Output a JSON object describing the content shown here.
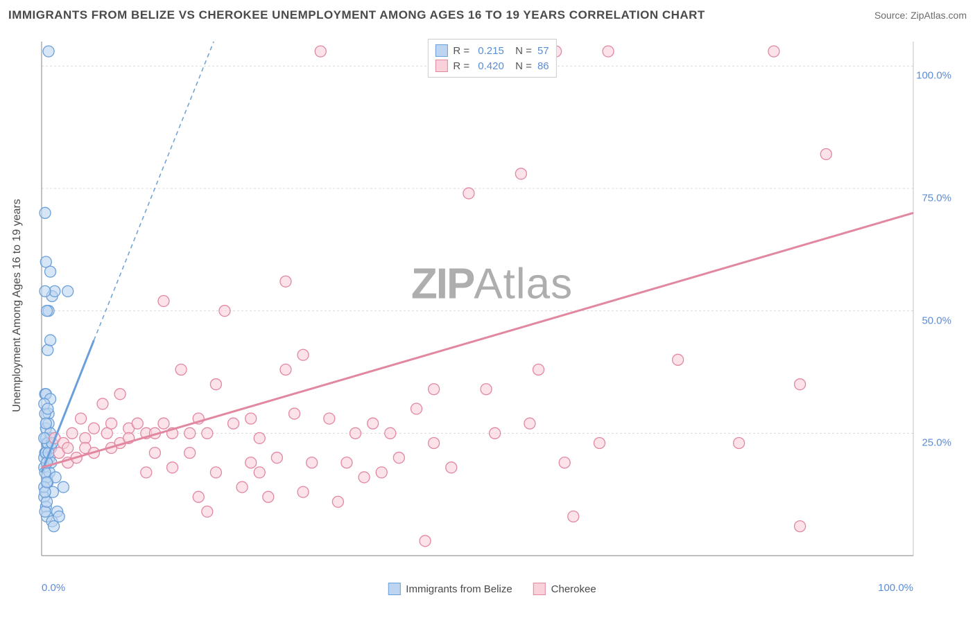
{
  "title": "IMMIGRANTS FROM BELIZE VS CHEROKEE UNEMPLOYMENT AMONG AGES 16 TO 19 YEARS CORRELATION CHART",
  "source": "Source: ZipAtlas.com",
  "y_axis_label": "Unemployment Among Ages 16 to 19 years",
  "watermark_strong": "ZIP",
  "watermark_light": "Atlas",
  "chart": {
    "type": "scatter",
    "xlim": [
      0,
      100
    ],
    "ylim": [
      0,
      105
    ],
    "x_ticks": [
      {
        "value": 0,
        "label": "0.0%"
      },
      {
        "value": 100,
        "label": "100.0%"
      }
    ],
    "y_ticks": [
      {
        "value": 25,
        "label": "25.0%"
      },
      {
        "value": 50,
        "label": "50.0%"
      },
      {
        "value": 75,
        "label": "75.0%"
      },
      {
        "value": 100,
        "label": "100.0%"
      }
    ],
    "grid_color": "#d9d9d9",
    "axis_color": "#9a9a9a",
    "background_color": "#ffffff",
    "marker_radius": 8,
    "marker_stroke_width": 1.3,
    "trend_line_width": 3,
    "dashed_line_width": 1.5,
    "series": [
      {
        "name": "Immigrants from Belize",
        "fill_color": "#bdd5f0",
        "stroke_color": "#6a9fd9",
        "fill_opacity": 0.6,
        "R": "0.215",
        "N": "57",
        "trend_start": {
          "x": 0,
          "y": 17
        },
        "trend_end": {
          "x": 6,
          "y": 44
        },
        "dashed_end": {
          "x": 22,
          "y": 115
        },
        "points": [
          [
            0.3,
            18
          ],
          [
            0.4,
            21
          ],
          [
            0.6,
            23
          ],
          [
            0.5,
            26
          ],
          [
            0.8,
            29
          ],
          [
            0.4,
            33
          ],
          [
            0.7,
            15
          ],
          [
            0.9,
            20
          ],
          [
            1.0,
            24
          ],
          [
            1.1,
            22
          ],
          [
            0.3,
            12
          ],
          [
            0.5,
            10
          ],
          [
            0.6,
            8
          ],
          [
            1.2,
            7
          ],
          [
            1.4,
            6
          ],
          [
            1.8,
            9
          ],
          [
            2.0,
            8
          ],
          [
            2.5,
            14
          ],
          [
            0.5,
            33
          ],
          [
            0.7,
            42
          ],
          [
            1.0,
            44
          ],
          [
            1.2,
            53
          ],
          [
            1.5,
            54
          ],
          [
            0.8,
            50
          ],
          [
            0.6,
            50
          ],
          [
            0.4,
            54
          ],
          [
            0.5,
            60
          ],
          [
            1.0,
            58
          ],
          [
            0.4,
            70
          ],
          [
            3.0,
            54
          ],
          [
            1.0,
            32
          ],
          [
            0.3,
            20
          ],
          [
            0.5,
            24
          ],
          [
            0.8,
            27
          ],
          [
            0.4,
            29
          ],
          [
            0.6,
            16
          ],
          [
            0.3,
            14
          ],
          [
            0.9,
            17
          ],
          [
            1.1,
            19
          ],
          [
            0.4,
            9
          ],
          [
            0.6,
            11
          ],
          [
            1.3,
            13
          ],
          [
            1.6,
            16
          ],
          [
            0.3,
            31
          ],
          [
            0.5,
            21
          ],
          [
            0.7,
            23
          ],
          [
            1.0,
            25
          ],
          [
            0.4,
            17
          ],
          [
            0.6,
            19
          ],
          [
            0.8,
            21
          ],
          [
            1.2,
            23
          ],
          [
            0.3,
            24
          ],
          [
            0.5,
            27
          ],
          [
            0.7,
            30
          ],
          [
            0.4,
            13
          ],
          [
            0.6,
            15
          ],
          [
            0.8,
            103
          ]
        ]
      },
      {
        "name": "Cherokee",
        "fill_color": "#f8d1da",
        "stroke_color": "#e287a0",
        "fill_opacity": 0.6,
        "R": "0.420",
        "N": "86",
        "trend_start": {
          "x": 0,
          "y": 18
        },
        "trend_end": {
          "x": 100,
          "y": 70
        },
        "points": [
          [
            1.5,
            24
          ],
          [
            2,
            21
          ],
          [
            2.5,
            23
          ],
          [
            3,
            19
          ],
          [
            3,
            22
          ],
          [
            3.5,
            25
          ],
          [
            4,
            20
          ],
          [
            4.5,
            28
          ],
          [
            5,
            24
          ],
          [
            5,
            22
          ],
          [
            6,
            26
          ],
          [
            6,
            21
          ],
          [
            7,
            31
          ],
          [
            7.5,
            25
          ],
          [
            8,
            22
          ],
          [
            8,
            27
          ],
          [
            9,
            23
          ],
          [
            9,
            33
          ],
          [
            10,
            26
          ],
          [
            10,
            24
          ],
          [
            11,
            27
          ],
          [
            12,
            25
          ],
          [
            12,
            17
          ],
          [
            13,
            21
          ],
          [
            13,
            25
          ],
          [
            14,
            27
          ],
          [
            14,
            52
          ],
          [
            15,
            25
          ],
          [
            15,
            18
          ],
          [
            16,
            38
          ],
          [
            17,
            21
          ],
          [
            17,
            25
          ],
          [
            18,
            12
          ],
          [
            18,
            28
          ],
          [
            19,
            9
          ],
          [
            19,
            25
          ],
          [
            20,
            17
          ],
          [
            20,
            35
          ],
          [
            21,
            50
          ],
          [
            22,
            27
          ],
          [
            23,
            14
          ],
          [
            24,
            19
          ],
          [
            24,
            28
          ],
          [
            25,
            24
          ],
          [
            25,
            17
          ],
          [
            26,
            12
          ],
          [
            27,
            20
          ],
          [
            28,
            38
          ],
          [
            28,
            56
          ],
          [
            29,
            29
          ],
          [
            30,
            13
          ],
          [
            30,
            41
          ],
          [
            31,
            19
          ],
          [
            32,
            103
          ],
          [
            33,
            28
          ],
          [
            34,
            11
          ],
          [
            35,
            19
          ],
          [
            36,
            25
          ],
          [
            37,
            16
          ],
          [
            38,
            27
          ],
          [
            39,
            17
          ],
          [
            40,
            25
          ],
          [
            41,
            20
          ],
          [
            43,
            30
          ],
          [
            44,
            3
          ],
          [
            45,
            23
          ],
          [
            45,
            34
          ],
          [
            46,
            104
          ],
          [
            47,
            18
          ],
          [
            49,
            74
          ],
          [
            51,
            34
          ],
          [
            52,
            25
          ],
          [
            55,
            78
          ],
          [
            56,
            27
          ],
          [
            57,
            38
          ],
          [
            59,
            103
          ],
          [
            60,
            19
          ],
          [
            61,
            8
          ],
          [
            64,
            23
          ],
          [
            65,
            103
          ],
          [
            73,
            40
          ],
          [
            80,
            23
          ],
          [
            84,
            103
          ],
          [
            87,
            35
          ],
          [
            87,
            6
          ],
          [
            90,
            82
          ]
        ]
      }
    ],
    "bottom_legend": [
      {
        "label": "Immigrants from Belize",
        "fill": "#bdd5f0",
        "stroke": "#6a9fd9"
      },
      {
        "label": "Cherokee",
        "fill": "#f8d1da",
        "stroke": "#e287a0"
      }
    ]
  }
}
